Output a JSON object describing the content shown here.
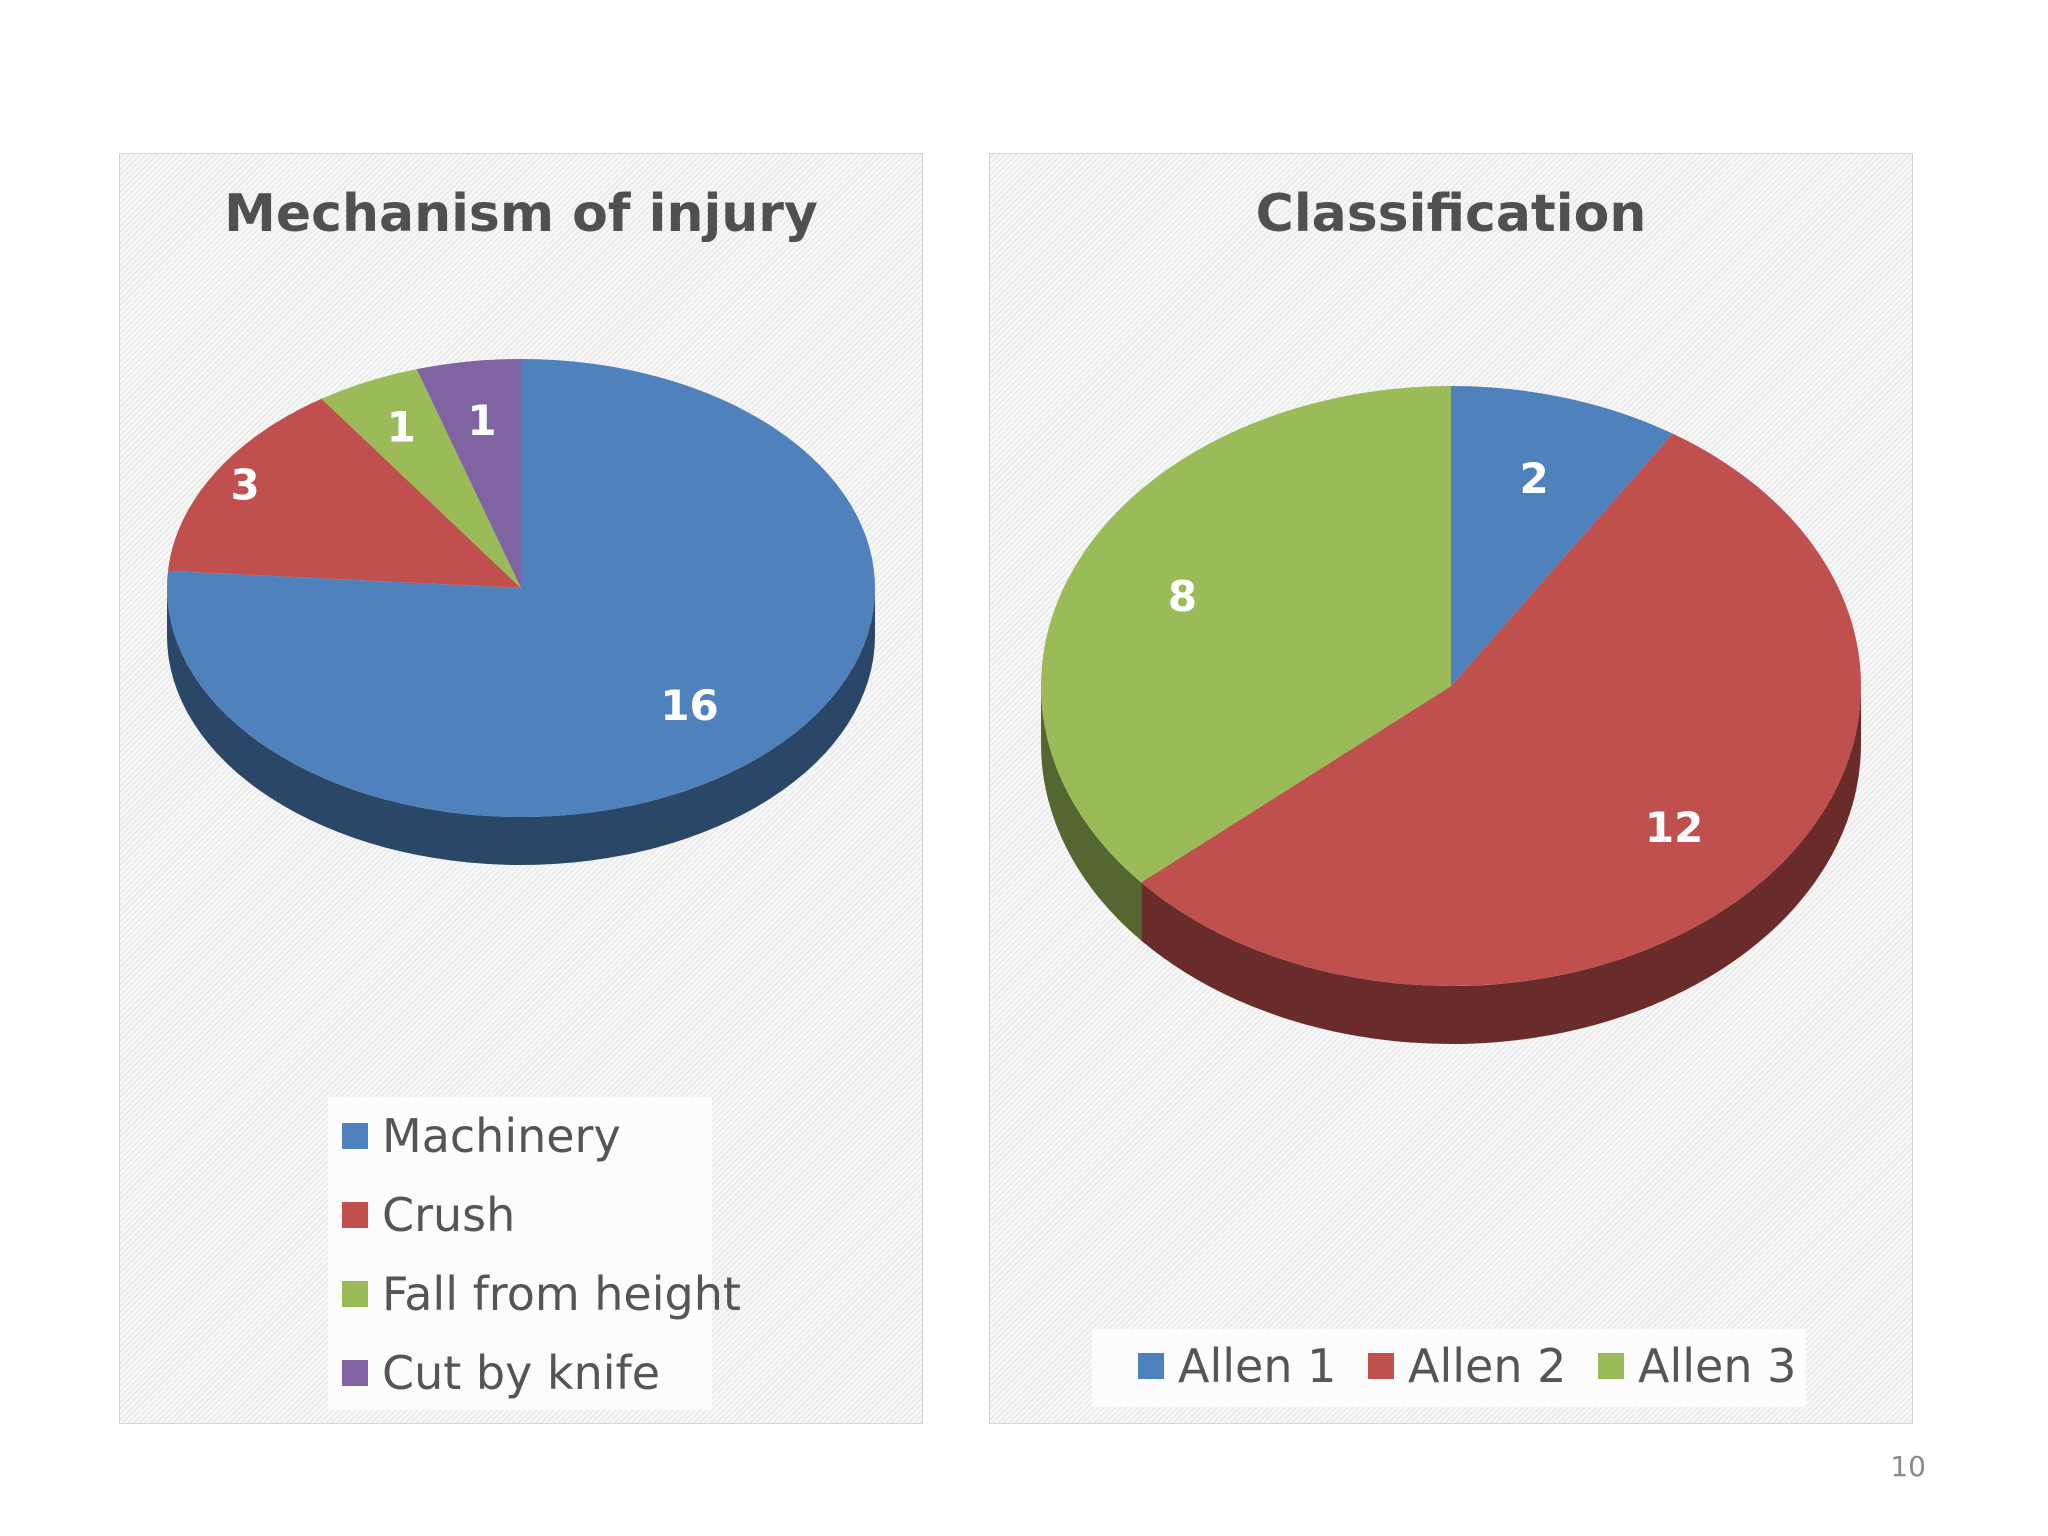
{
  "page": {
    "number": "10"
  },
  "chart_data": [
    {
      "type": "pie",
      "title": "Mechanism of injury",
      "categories": [
        "Machinery",
        "Crush",
        "Fall from height",
        "Cut by knife"
      ],
      "values": [
        16,
        3,
        1,
        1
      ],
      "colors": [
        "#4f81bd",
        "#c0504d",
        "#9bbb59",
        "#8064a2"
      ],
      "data_labels": [
        "16",
        "3",
        "1",
        "1"
      ],
      "legend": {
        "placement": "bottom",
        "entries": [
          "Machinery",
          "Crush",
          "Fall from height",
          "Cut by knife"
        ]
      },
      "style": "3d"
    },
    {
      "type": "pie",
      "title": "Classification",
      "categories": [
        "Allen 1",
        "Allen 2",
        "Allen 3"
      ],
      "values": [
        2,
        12,
        8
      ],
      "colors": [
        "#4f81bd",
        "#c0504d",
        "#9bbb59"
      ],
      "data_labels": [
        "2",
        "12",
        "8"
      ],
      "legend": {
        "placement": "bottom",
        "entries": [
          "Allen 1",
          "Allen 2",
          "Allen 3"
        ]
      },
      "style": "3d"
    }
  ]
}
